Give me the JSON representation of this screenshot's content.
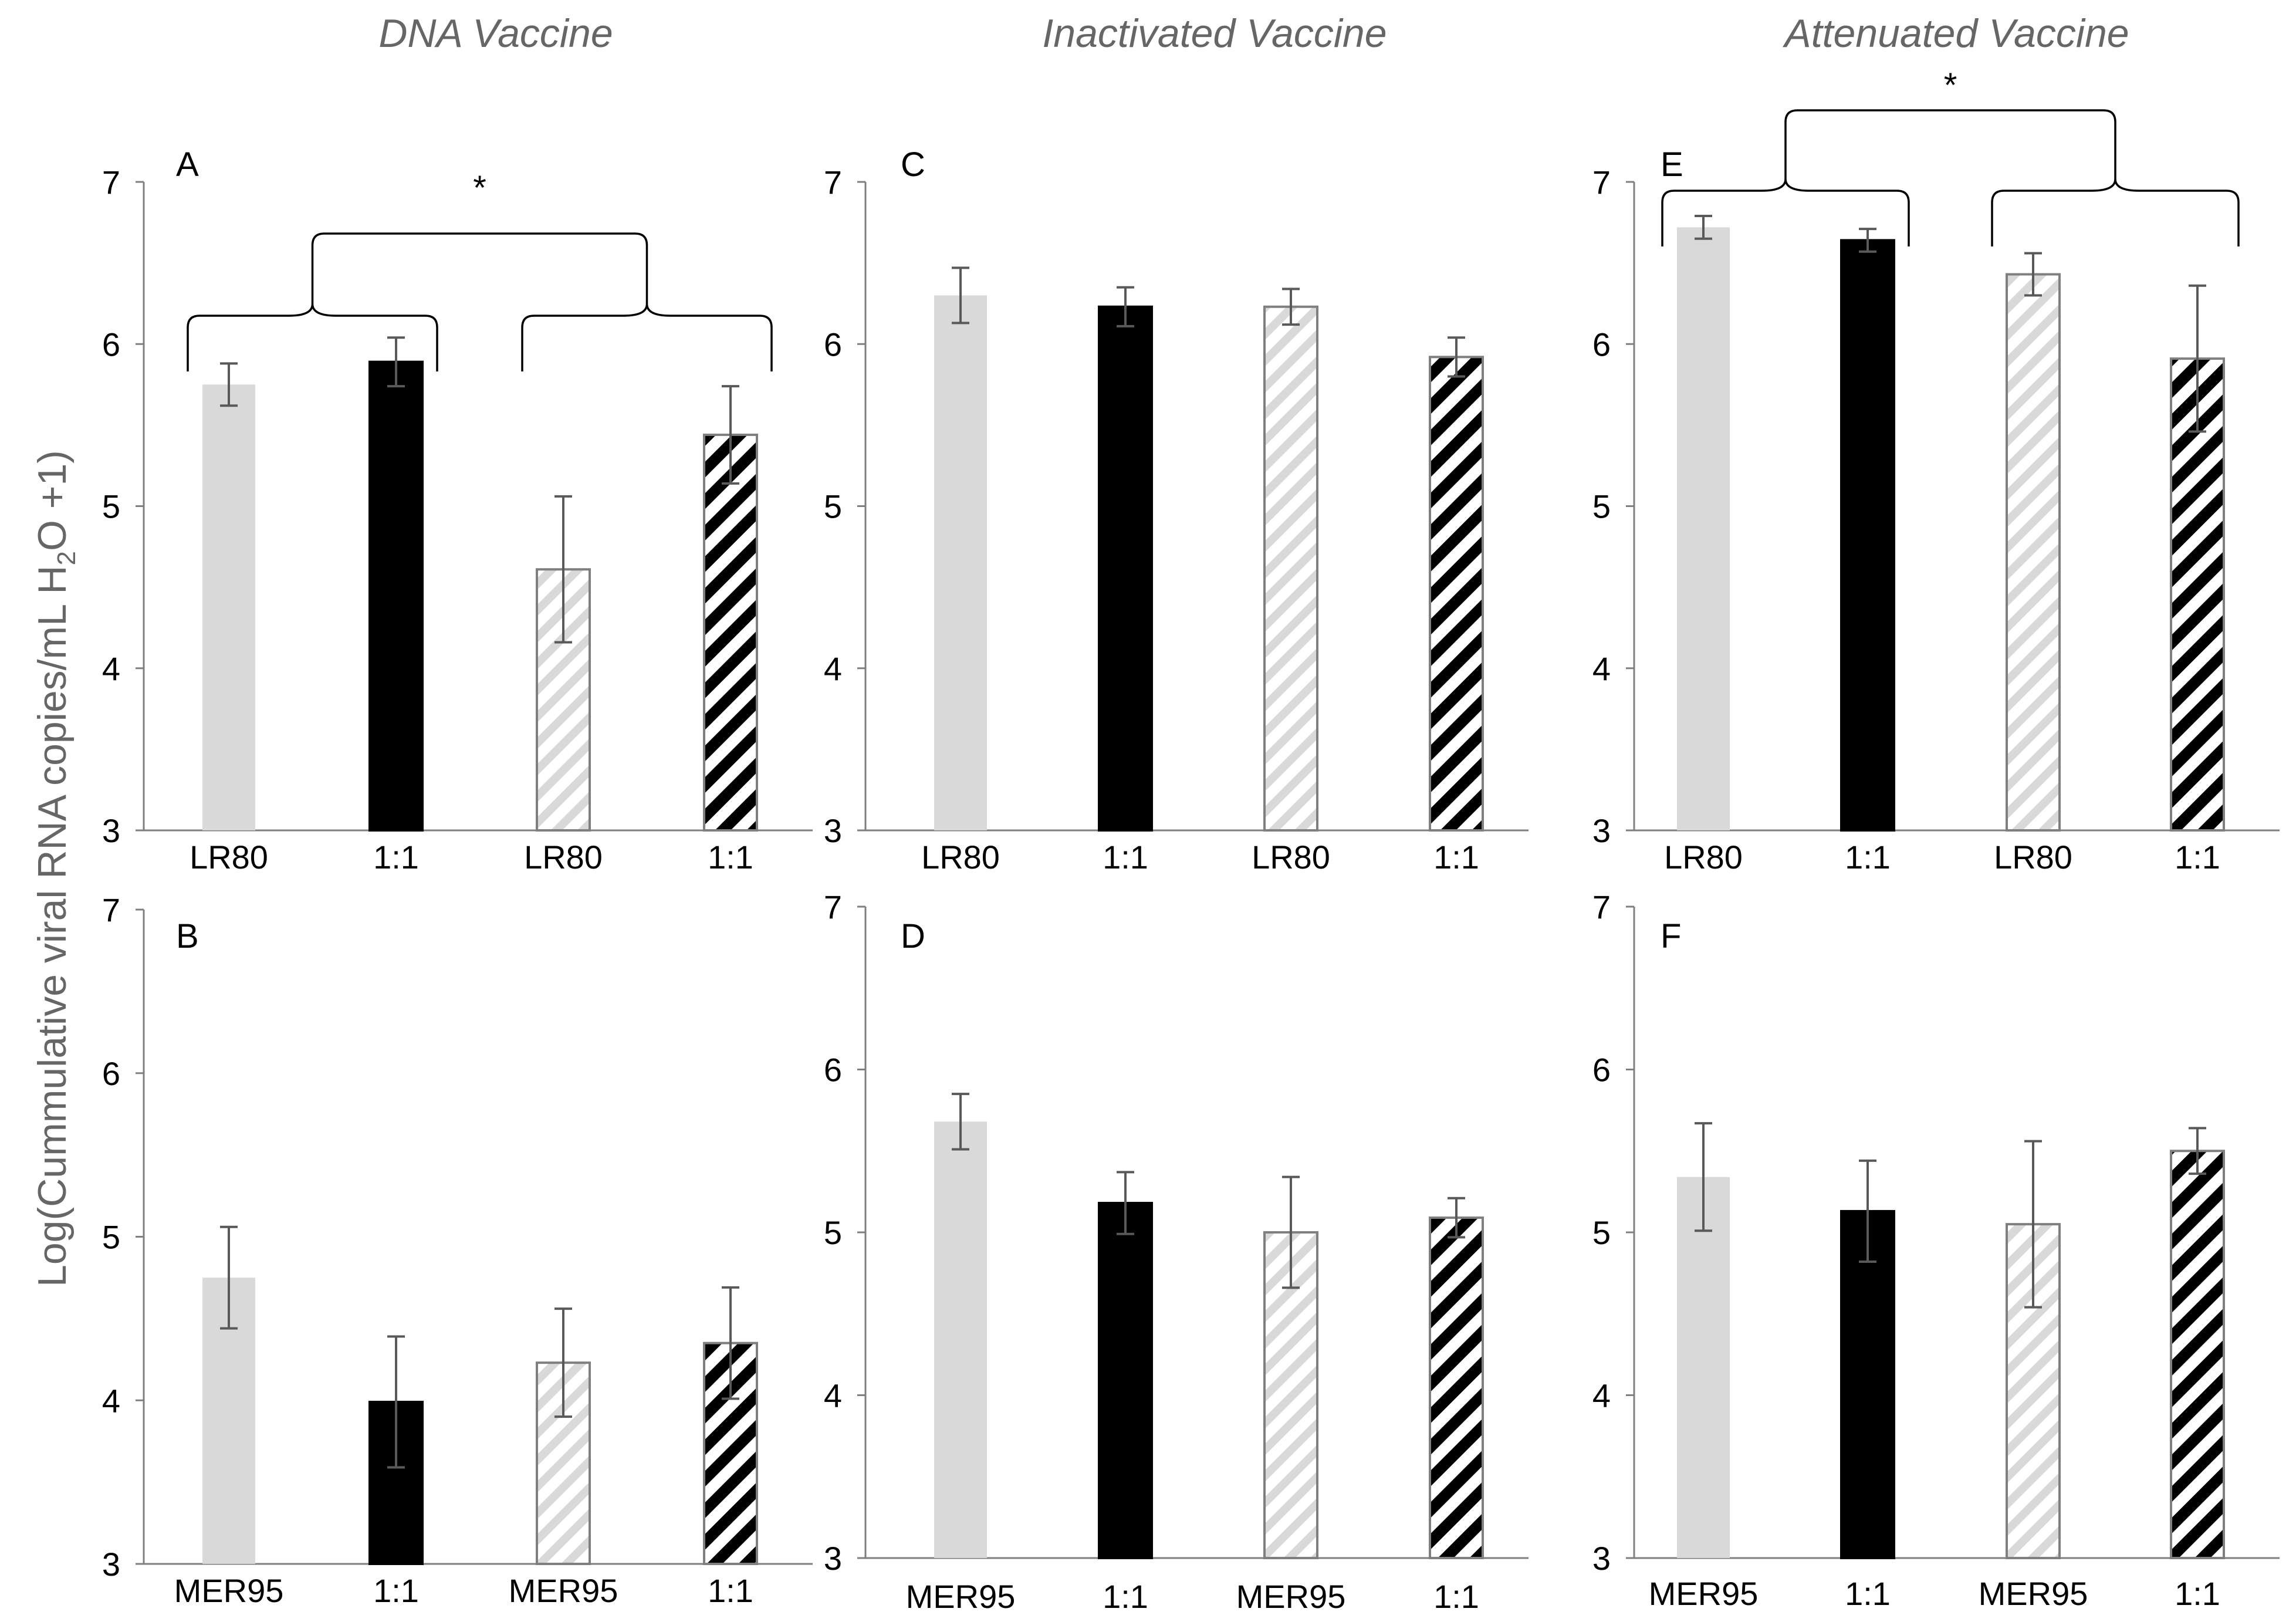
{
  "figure": {
    "column_titles": [
      "DNA Vaccine",
      "Inactivated Vaccine",
      "Attenuated Vaccine"
    ],
    "ylabel_parts": [
      "Log(Cummulative viral RNA copies/mL H",
      "2",
      "O +1)"
    ],
    "colors": {
      "light": "#d9d9d9",
      "dark": "#000000",
      "outline": "#7f7f7f",
      "axis": "#7f7f7f",
      "error": "#595959"
    }
  },
  "chart_data": [
    {
      "panel": "A",
      "type": "bar",
      "title": "DNA Vaccine",
      "categories": [
        "LR80",
        "1:1",
        "LR80",
        "1:1"
      ],
      "fills": [
        "light",
        "dark",
        "light-hatch",
        "dark-hatch"
      ],
      "values": [
        5.75,
        5.89,
        4.61,
        5.44
      ],
      "errors": [
        0.13,
        0.15,
        0.45,
        0.3
      ],
      "ylim": [
        3,
        7
      ],
      "yticks": [
        3,
        4,
        5,
        6,
        7
      ],
      "significance": {
        "label": "*",
        "groups": [
          [
            0,
            1
          ],
          [
            2,
            3
          ]
        ]
      }
    },
    {
      "panel": "B",
      "type": "bar",
      "title": "DNA Vaccine",
      "categories": [
        "MER95",
        "1:1",
        "MER95",
        "1:1"
      ],
      "fills": [
        "light",
        "dark",
        "light-hatch",
        "dark-hatch"
      ],
      "values": [
        4.75,
        3.99,
        4.23,
        4.35
      ],
      "errors": [
        0.31,
        0.4,
        0.33,
        0.34
      ],
      "ylim": [
        3,
        7
      ],
      "yticks": [
        3,
        4,
        5,
        6,
        7
      ]
    },
    {
      "panel": "C",
      "type": "bar",
      "title": "Inactivated Vaccine",
      "categories": [
        "LR80",
        "1:1",
        "LR80",
        "1:1"
      ],
      "fills": [
        "light",
        "dark",
        "light-hatch",
        "dark-hatch"
      ],
      "values": [
        6.3,
        6.23,
        6.23,
        5.92
      ],
      "errors": [
        0.17,
        0.12,
        0.11,
        0.12
      ],
      "ylim": [
        3,
        7
      ],
      "yticks": [
        3,
        4,
        5,
        6,
        7
      ]
    },
    {
      "panel": "D",
      "type": "bar",
      "title": "Inactivated Vaccine",
      "categories": [
        "MER95",
        "1:1",
        "MER95",
        "1:1"
      ],
      "fills": [
        "light",
        "dark",
        "light-hatch",
        "dark-hatch"
      ],
      "values": [
        5.68,
        5.18,
        5.0,
        5.09
      ],
      "errors": [
        0.17,
        0.19,
        0.34,
        0.12
      ],
      "ylim": [
        3,
        7
      ],
      "yticks": [
        3,
        4,
        5,
        6,
        7
      ]
    },
    {
      "panel": "E",
      "type": "bar",
      "title": "Attenuated Vaccine",
      "categories": [
        "LR80",
        "1:1",
        "LR80",
        "1:1"
      ],
      "fills": [
        "light",
        "dark",
        "light-hatch",
        "dark-hatch"
      ],
      "values": [
        6.72,
        6.64,
        6.43,
        5.91
      ],
      "errors": [
        0.07,
        0.07,
        0.13,
        0.45
      ],
      "ylim": [
        3,
        7
      ],
      "yticks": [
        3,
        4,
        5,
        6,
        7
      ],
      "significance": {
        "label": "*",
        "groups": [
          [
            0,
            1
          ],
          [
            2,
            3
          ]
        ]
      }
    },
    {
      "panel": "F",
      "type": "bar",
      "title": "Attenuated Vaccine",
      "categories": [
        "MER95",
        "1:1",
        "MER95",
        "1:1"
      ],
      "fills": [
        "light",
        "dark",
        "light-hatch",
        "dark-hatch"
      ],
      "values": [
        5.34,
        5.13,
        5.05,
        5.5
      ],
      "errors": [
        0.33,
        0.31,
        0.51,
        0.14
      ],
      "ylim": [
        3,
        7
      ],
      "yticks": [
        3,
        4,
        5,
        6,
        7
      ]
    }
  ]
}
